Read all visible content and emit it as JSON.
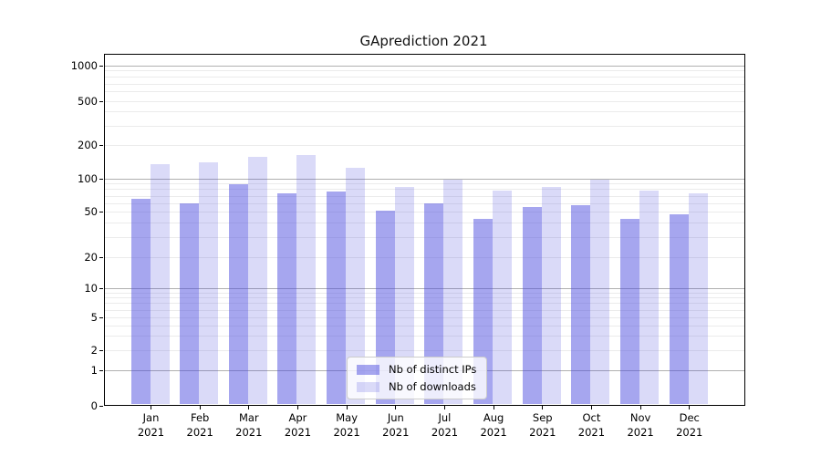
{
  "title": "GAprediction 2021",
  "chart_data": {
    "type": "bar",
    "title": "GAprediction 2021",
    "x_month_labels": [
      "Jan",
      "Feb",
      "Mar",
      "Apr",
      "May",
      "Jun",
      "Jul",
      "Aug",
      "Sep",
      "Oct",
      "Nov",
      "Dec"
    ],
    "x_year_label": "2021",
    "series": [
      {
        "name": "Nb of distinct IPs",
        "color": "rgba(68,68,221,0.48)",
        "values": [
          65,
          60,
          88,
          74,
          76,
          51,
          60,
          43,
          55,
          57,
          43,
          48
        ]
      },
      {
        "name": "Nb of downloads",
        "color": "rgba(68,68,221,0.20)",
        "values": [
          134,
          140,
          157,
          163,
          125,
          84,
          98,
          78,
          84,
          98,
          78,
          74
        ]
      }
    ],
    "y_axis": {
      "scale": "symlog",
      "tick_labels": [
        0,
        1,
        2,
        5,
        10,
        20,
        50,
        100,
        200,
        500,
        1000
      ],
      "major_gridline_values": [
        1,
        10,
        100,
        1000
      ]
    },
    "legend": {
      "entries": [
        "Nb of distinct IPs",
        "Nb of downloads"
      ],
      "position": "lower center inside plot"
    },
    "grid": "horizontal log major+minor",
    "background_color": "#ffffff"
  }
}
